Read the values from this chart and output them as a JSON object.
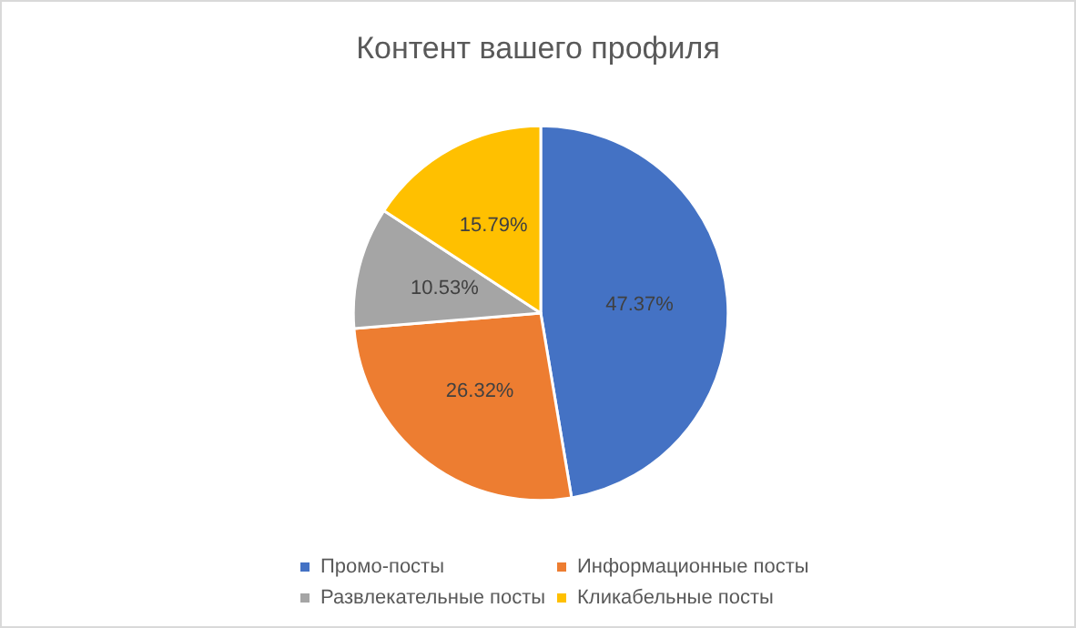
{
  "chart_data": {
    "type": "pie",
    "title": "Контент вашего профиля",
    "categories": [
      "Промо-посты",
      "Информационные посты",
      "Развлекательные посты",
      "Кликабельные посты"
    ],
    "values": [
      47.37,
      26.32,
      10.53,
      15.79
    ],
    "colors": [
      "#4472c4",
      "#ed7d31",
      "#a5a5a5",
      "#ffc000"
    ],
    "value_labels": [
      "47.37%",
      "26.32%",
      "10.53%",
      "15.79%"
    ],
    "legend": "bottom"
  }
}
